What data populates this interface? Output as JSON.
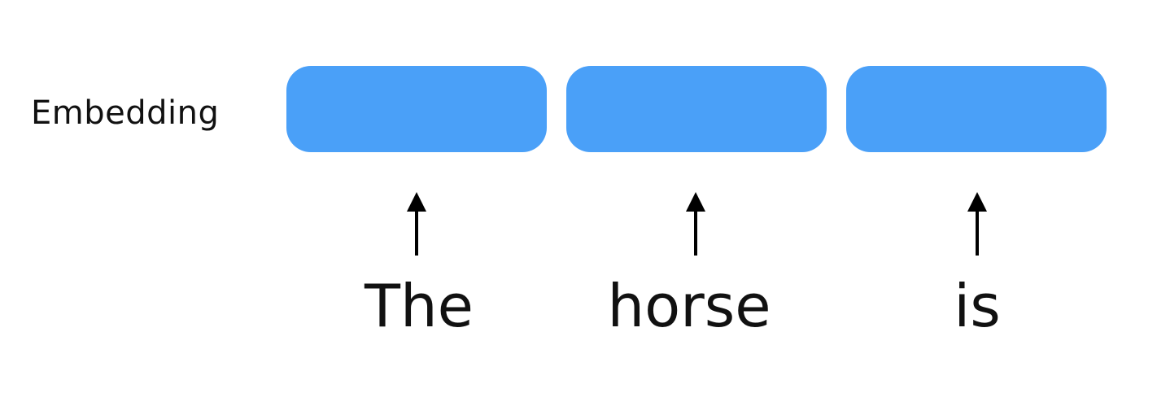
{
  "row_label": "Embedding",
  "tokens": [
    {
      "word": "The"
    },
    {
      "word": "horse"
    },
    {
      "word": "is"
    }
  ],
  "colors": {
    "embedding_box": "#4aa0f8",
    "arrow": "#000000",
    "text": "#111111"
  }
}
